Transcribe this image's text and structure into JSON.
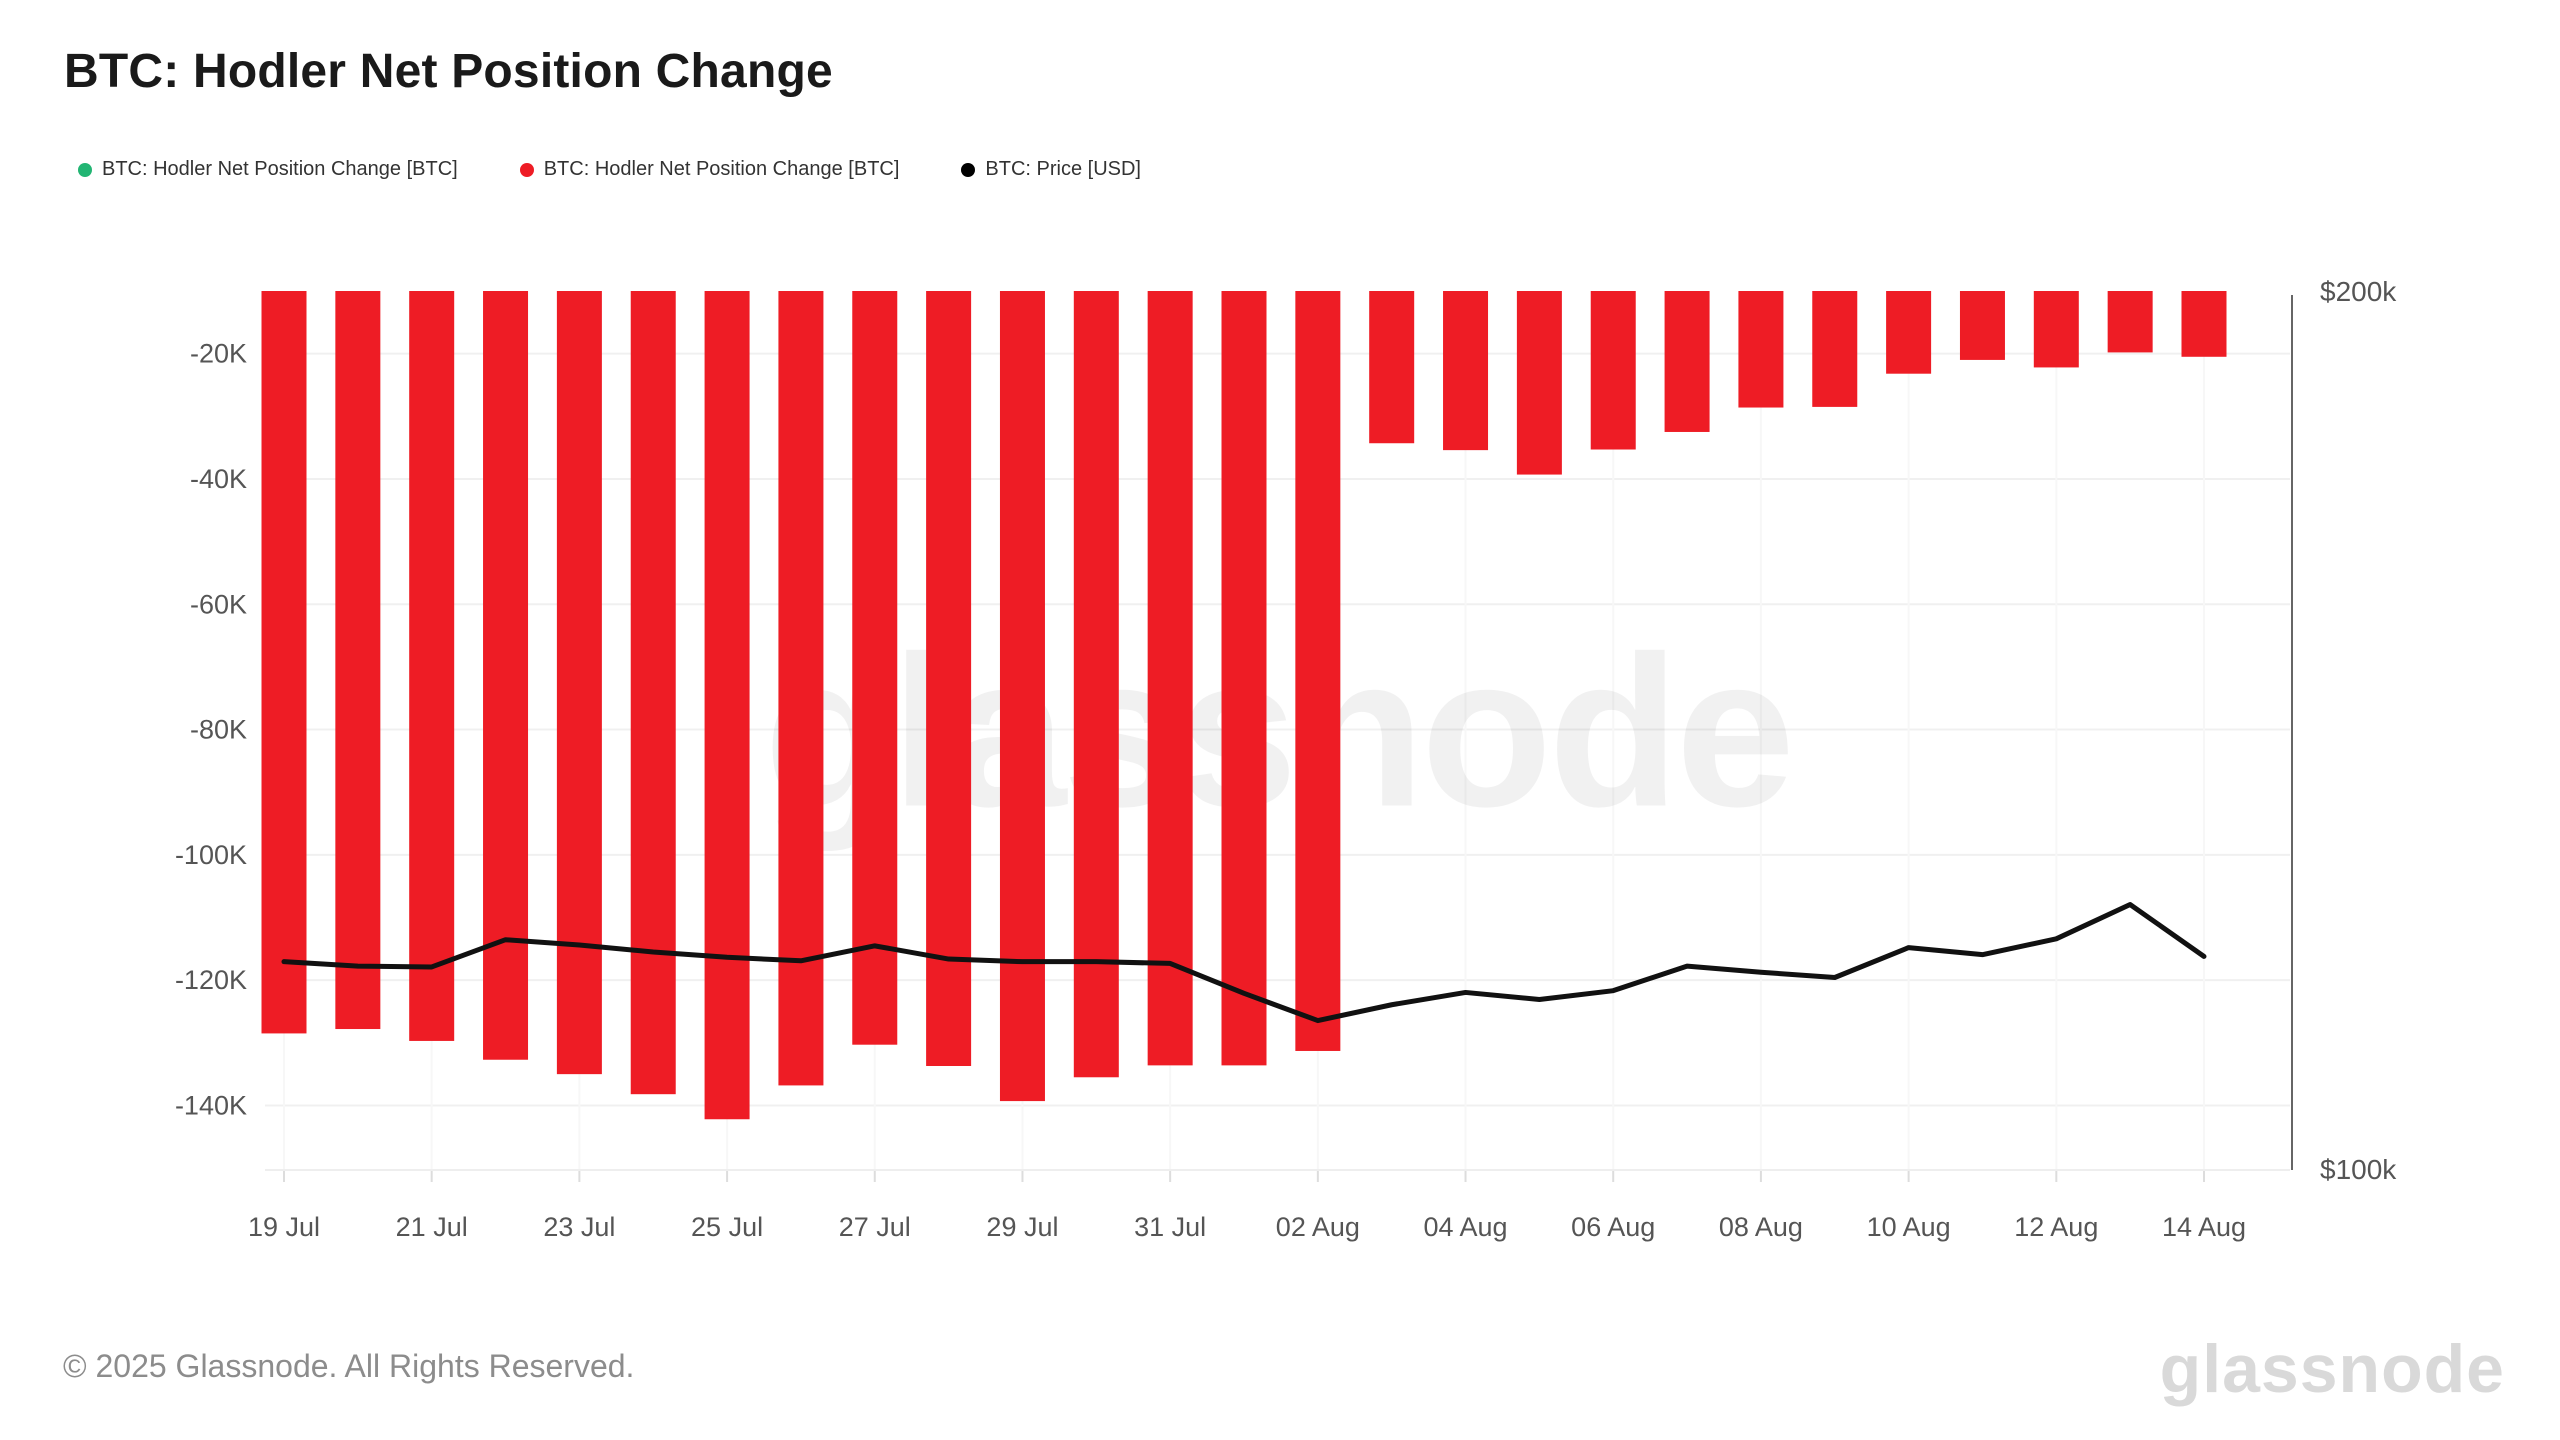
{
  "header": {
    "title": "BTC: Hodler Net Position Change"
  },
  "legend": {
    "items": [
      {
        "label": "BTC: Hodler Net Position Change [BTC]",
        "color": "#22b573",
        "marker": "circle"
      },
      {
        "label": "BTC: Hodler Net Position Change [BTC]",
        "color": "#ee1c25",
        "marker": "circle"
      },
      {
        "label": "BTC: Price [USD]",
        "color": "#000000",
        "marker": "circle"
      }
    ]
  },
  "watermark": "glassnode",
  "footer": {
    "copyright": "© 2025 Glassnode. All Rights Reserved.",
    "logo_text": "glassnode"
  },
  "chart_data": {
    "type": "bar",
    "title": "BTC: Hodler Net Position Change",
    "categories": [
      "19 Jul",
      "20 Jul",
      "21 Jul",
      "22 Jul",
      "23 Jul",
      "24 Jul",
      "25 Jul",
      "26 Jul",
      "27 Jul",
      "28 Jul",
      "29 Jul",
      "30 Jul",
      "31 Jul",
      "01 Aug",
      "02 Aug",
      "03 Aug",
      "04 Aug",
      "05 Aug",
      "06 Aug",
      "07 Aug",
      "08 Aug",
      "09 Aug",
      "10 Aug",
      "11 Aug",
      "12 Aug",
      "13 Aug",
      "14 Aug"
    ],
    "series": [
      {
        "name": "BTC: Hodler Net Position Change [BTC]",
        "type": "bar",
        "color": "#ee1c25",
        "unit": "thousand BTC",
        "values": [
          -128.5,
          -127.8,
          -129.7,
          -132.7,
          -135.0,
          -138.2,
          -142.2,
          -136.8,
          -130.3,
          -133.7,
          -139.3,
          -135.5,
          -133.6,
          -133.6,
          -131.3,
          -34.3,
          -35.4,
          -39.3,
          -35.3,
          -32.5,
          -28.6,
          -28.5,
          -23.2,
          -21.0,
          -22.2,
          -19.8,
          -20.5
        ]
      },
      {
        "name": "BTC: Price [USD]",
        "type": "line",
        "color": "#111111",
        "unit": "thousand USD",
        "values": [
          123.7,
          123.2,
          123.1,
          126.2,
          125.6,
          124.8,
          124.2,
          123.8,
          125.5,
          124.0,
          123.7,
          123.7,
          123.5,
          120.1,
          117.0,
          118.8,
          120.2,
          119.4,
          120.4,
          123.2,
          122.5,
          121.9,
          125.3,
          124.5,
          126.3,
          130.2,
          124.3
        ]
      }
    ],
    "left_axis": {
      "tick_labels": [
        "-20K",
        "-40K",
        "-60K",
        "-80K",
        "-100K",
        "-120K",
        "-140K"
      ],
      "tick_values": [
        -20,
        -40,
        -60,
        -80,
        -100,
        -120,
        -140
      ],
      "range": [
        -150.3,
        -10
      ],
      "grid": true
    },
    "right_axis": {
      "tick_labels": [
        "$200k",
        "$100k"
      ],
      "tick_values": [
        200,
        100
      ],
      "range": [
        100,
        200
      ]
    },
    "x_axis": {
      "tick_labels": [
        "19 Jul",
        "21 Jul",
        "23 Jul",
        "25 Jul",
        "27 Jul",
        "29 Jul",
        "31 Jul",
        "02 Aug",
        "04 Aug",
        "06 Aug",
        "08 Aug",
        "10 Aug",
        "12 Aug",
        "14 Aug"
      ],
      "tick_every": 2
    },
    "legend_position": "top-left",
    "grid": "horizontal-major"
  }
}
